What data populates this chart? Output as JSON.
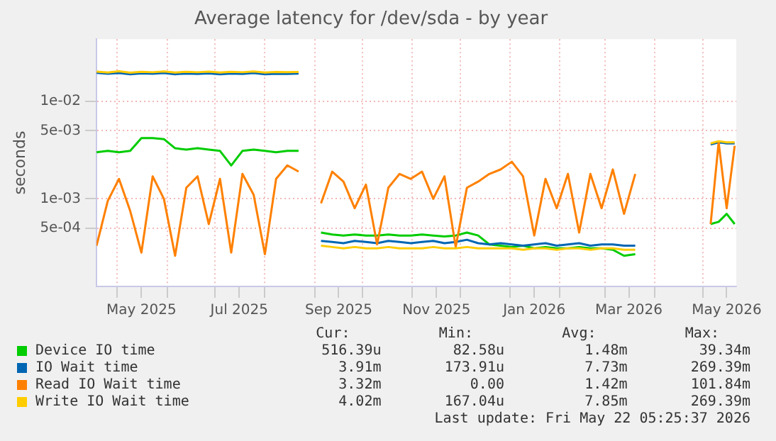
{
  "chart_data": {
    "type": "line",
    "title": "Average latency for /dev/sda - by year",
    "ylabel": "seconds",
    "log": "y",
    "grid": true,
    "legend": "bottom",
    "marker": "none",
    "line_style": "solid",
    "x": [
      "2025-04-18",
      "2025-04-25",
      "2025-05-02",
      "2025-05-09",
      "2025-05-16",
      "2025-05-23",
      "2025-05-30",
      "2025-06-06",
      "2025-06-13",
      "2025-06-20",
      "2025-06-27",
      "2025-07-04",
      "2025-07-11",
      "2025-07-18",
      "2025-07-25",
      "2025-08-01",
      "2025-08-08",
      "2025-08-15",
      "2025-08-22",
      "2025-08-29",
      "2025-09-05",
      "2025-09-12",
      "2025-09-19",
      "2025-09-26",
      "2025-10-03",
      "2025-10-10",
      "2025-10-17",
      "2025-10-24",
      "2025-10-31",
      "2025-11-07",
      "2025-11-14",
      "2025-11-21",
      "2025-11-28",
      "2025-12-05",
      "2025-12-12",
      "2025-12-19",
      "2025-12-26",
      "2026-01-02",
      "2026-01-09",
      "2026-01-16",
      "2026-01-23",
      "2026-01-30",
      "2026-02-06",
      "2026-02-13",
      "2026-02-20",
      "2026-02-27",
      "2026-03-06",
      "2026-03-13",
      "2026-03-20",
      "2026-03-27",
      "2026-05-06",
      "2026-05-11",
      "2026-05-16",
      "2026-05-21"
    ],
    "series": [
      {
        "name": "Device IO time",
        "color": "#00cc00",
        "values": [
          0.003,
          0.0031,
          0.003,
          0.0031,
          0.0042,
          0.0042,
          0.0041,
          0.0033,
          0.0032,
          0.0033,
          0.0032,
          0.0031,
          0.0022,
          0.0031,
          0.0032,
          0.0031,
          0.003,
          0.0031,
          0.0031,
          null,
          0.00045,
          0.00043,
          0.00042,
          0.00043,
          0.00042,
          0.00042,
          0.00043,
          0.00042,
          0.00042,
          0.00043,
          0.00042,
          0.00041,
          0.00042,
          0.00045,
          0.00042,
          0.00034,
          0.00033,
          0.00032,
          0.00033,
          0.00031,
          0.00032,
          0.00031,
          0.00031,
          0.00032,
          0.00031,
          0.00031,
          0.0003,
          0.00026,
          0.00027,
          null,
          0.00055,
          0.00058,
          0.0007,
          0.00055
        ]
      },
      {
        "name": "IO Wait time",
        "color": "#0066b3",
        "values": [
          0.0196,
          0.0192,
          0.0195,
          0.019,
          0.0194,
          0.0192,
          0.0195,
          0.019,
          0.0193,
          0.0191,
          0.0194,
          0.019,
          0.0193,
          0.0191,
          0.0195,
          0.019,
          0.0192,
          0.0191,
          0.0193,
          null,
          0.00037,
          0.00036,
          0.00035,
          0.00037,
          0.00036,
          0.00035,
          0.00037,
          0.00036,
          0.00035,
          0.00036,
          0.00037,
          0.00035,
          0.00036,
          0.00038,
          0.00035,
          0.00034,
          0.00035,
          0.00034,
          0.00033,
          0.00034,
          0.00035,
          0.00033,
          0.00034,
          0.00035,
          0.00033,
          0.00034,
          0.00034,
          0.00033,
          0.00033,
          null,
          0.0036,
          0.0038,
          0.0037,
          0.0037
        ]
      },
      {
        "name": "Read IO Wait time",
        "color": "#ff8000",
        "values": [
          0.00033,
          0.00095,
          0.0016,
          0.00075,
          0.00028,
          0.0017,
          0.001,
          0.00026,
          0.0013,
          0.0017,
          0.00055,
          0.0016,
          0.00028,
          0.0018,
          0.0011,
          0.00027,
          0.0016,
          0.0022,
          0.0019,
          null,
          0.0009,
          0.0019,
          0.0015,
          0.0008,
          0.0014,
          0.00034,
          0.0013,
          0.0018,
          0.0016,
          0.0019,
          0.001,
          0.0017,
          0.00032,
          0.0013,
          0.0015,
          0.0018,
          0.002,
          0.0024,
          0.0017,
          0.00042,
          0.0016,
          0.0008,
          0.0018,
          0.00045,
          0.0018,
          0.0008,
          0.002,
          0.0007,
          0.0018,
          null,
          0.00055,
          0.0038,
          0.0008,
          0.0035
        ]
      },
      {
        "name": "Write IO Wait time",
        "color": "#ffcc00",
        "values": [
          0.0202,
          0.0198,
          0.0204,
          0.0197,
          0.0201,
          0.0199,
          0.0203,
          0.0198,
          0.0201,
          0.0199,
          0.0202,
          0.0198,
          0.0201,
          0.0199,
          0.0203,
          0.0198,
          0.02,
          0.0199,
          0.02,
          null,
          0.00033,
          0.00032,
          0.00031,
          0.00032,
          0.00031,
          0.00031,
          0.00032,
          0.00031,
          0.00031,
          0.00031,
          0.00032,
          0.00031,
          0.00031,
          0.00032,
          0.00031,
          0.00031,
          0.00031,
          0.00031,
          0.0003,
          0.00031,
          0.00031,
          0.0003,
          0.00031,
          0.00031,
          0.0003,
          0.00031,
          0.00031,
          0.0003,
          0.0003,
          null,
          0.0037,
          0.0039,
          0.0038,
          0.0038
        ]
      }
    ],
    "xlim": [
      "2025-04-18",
      "2026-05-22"
    ],
    "xticks": [
      {
        "value": "2025-05-01",
        "label": null
      },
      {
        "value": "2025-05-16",
        "label": "May 2025"
      },
      {
        "value": "2025-06-01",
        "label": null
      },
      {
        "value": "2025-07-01",
        "label": null
      },
      {
        "value": "2025-07-16",
        "label": "Jul 2025"
      },
      {
        "value": "2025-08-01",
        "label": null
      },
      {
        "value": "2025-09-01",
        "label": null
      },
      {
        "value": "2025-09-16",
        "label": "Sep 2025"
      },
      {
        "value": "2025-10-01",
        "label": null
      },
      {
        "value": "2025-11-01",
        "label": null
      },
      {
        "value": "2025-11-16",
        "label": "Nov 2025"
      },
      {
        "value": "2025-12-01",
        "label": null
      },
      {
        "value": "2026-01-01",
        "label": null
      },
      {
        "value": "2026-01-16",
        "label": "Jan 2026"
      },
      {
        "value": "2026-02-01",
        "label": null
      },
      {
        "value": "2026-03-01",
        "label": null
      },
      {
        "value": "2026-03-16",
        "label": "Mar 2026"
      },
      {
        "value": "2026-04-01",
        "label": null
      },
      {
        "value": "2026-05-01",
        "label": null
      },
      {
        "value": "2026-05-16",
        "label": "May 2026"
      }
    ],
    "ylim": [
      0.000126,
      0.0435
    ],
    "yticks": [
      {
        "value": 0.0005,
        "label": "5e-04"
      },
      {
        "value": 0.001,
        "label": "1e-03"
      },
      {
        "value": 0.005,
        "label": "5e-03"
      },
      {
        "value": 0.01,
        "label": "1e-02"
      }
    ],
    "annotations": [
      "Cur:",
      "Min:",
      "Avg:",
      "Max:",
      "516.39u",
      "82.58u",
      "1.48m",
      "39.34m",
      "3.91m",
      "173.91u",
      "7.73m",
      "269.39m",
      "3.32m",
      "0.00",
      "1.42m",
      "101.84m",
      "4.02m",
      "167.04u",
      "7.85m",
      "269.39m",
      "Last update: Fri May 22 05:25:37 2026"
    ]
  }
}
